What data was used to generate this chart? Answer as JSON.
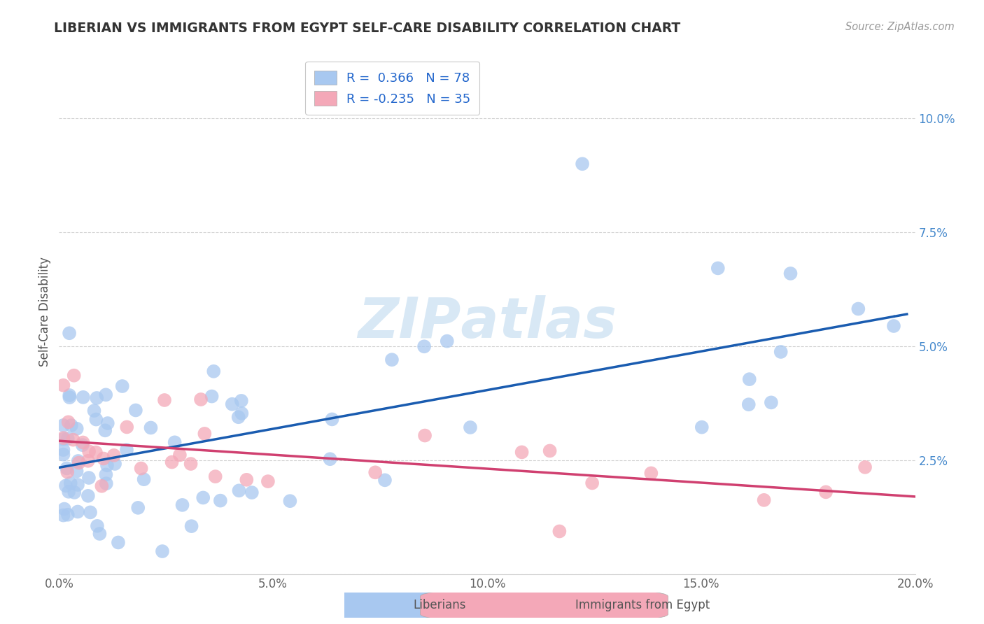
{
  "title": "LIBERIAN VS IMMIGRANTS FROM EGYPT SELF-CARE DISABILITY CORRELATION CHART",
  "source": "Source: ZipAtlas.com",
  "ylabel": "Self-Care Disability",
  "xlim": [
    0.0,
    0.2
  ],
  "ylim": [
    0.0,
    0.115
  ],
  "x_ticks": [
    0.0,
    0.05,
    0.1,
    0.15,
    0.2
  ],
  "x_tick_labels": [
    "0.0%",
    "5.0%",
    "10.0%",
    "15.0%",
    "20.0%"
  ],
  "y_ticks": [
    0.0,
    0.025,
    0.05,
    0.075,
    0.1
  ],
  "y_tick_labels": [
    "",
    "2.5%",
    "5.0%",
    "7.5%",
    "10.0%"
  ],
  "legend_entries": [
    "Liberians",
    "Immigrants from Egypt"
  ],
  "liberian_color": "#A8C8F0",
  "egypt_color": "#F4A8B8",
  "liberian_line_color": "#1A5CB0",
  "egypt_line_color": "#D04070",
  "r_liberian": 0.366,
  "n_liberian": 78,
  "r_egypt": -0.235,
  "n_egypt": 35,
  "background_color": "#FFFFFF",
  "grid_color": "#CCCCCC",
  "watermark_color": "#E0E8F4",
  "tick_color_right": "#4488CC",
  "tick_color_bottom": "#666666",
  "title_color": "#333333",
  "source_color": "#999999",
  "legend_text_color": "#2266CC"
}
